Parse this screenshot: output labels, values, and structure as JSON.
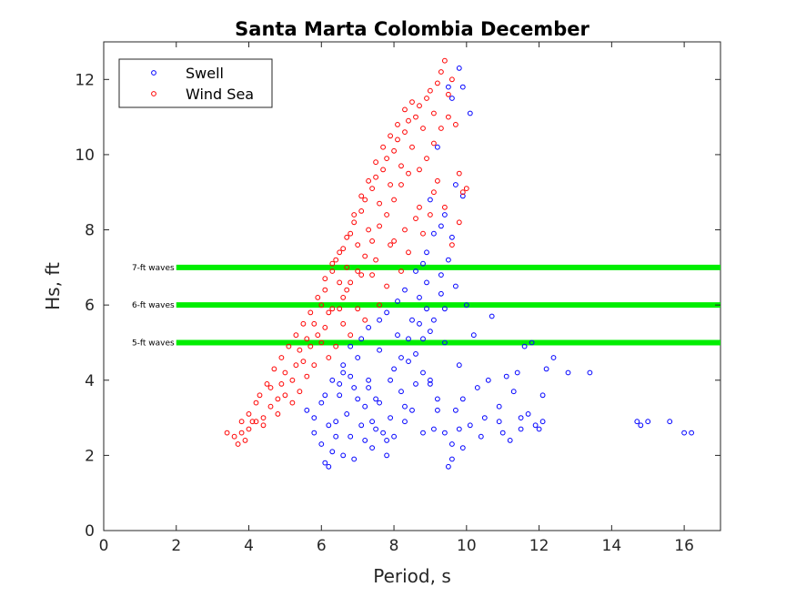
{
  "chart_data": {
    "type": "scatter",
    "title": "Santa Marta Colombia December",
    "xlabel": "Period, s",
    "ylabel": "Hs, ft",
    "xlim": [
      0,
      17
    ],
    "ylim": [
      0,
      13
    ],
    "xticks": [
      0,
      2,
      4,
      6,
      8,
      10,
      12,
      14,
      16
    ],
    "yticks": [
      0,
      2,
      4,
      6,
      8,
      10,
      12
    ],
    "grid": false,
    "legend_position": "top-left",
    "series": [
      {
        "name": "Swell",
        "color": "#0000ff",
        "marker": "circle-open",
        "points": [
          [
            5.6,
            3.2
          ],
          [
            5.8,
            2.6
          ],
          [
            6.0,
            2.3
          ],
          [
            6.1,
            1.8
          ],
          [
            6.2,
            1.7
          ],
          [
            6.3,
            2.1
          ],
          [
            6.4,
            2.9
          ],
          [
            6.5,
            3.6
          ],
          [
            6.6,
            4.2
          ],
          [
            6.7,
            3.1
          ],
          [
            6.8,
            2.5
          ],
          [
            6.9,
            3.8
          ],
          [
            7.0,
            4.6
          ],
          [
            7.1,
            2.8
          ],
          [
            7.2,
            3.3
          ],
          [
            7.3,
            4.0
          ],
          [
            7.4,
            2.2
          ],
          [
            7.5,
            3.5
          ],
          [
            7.6,
            4.8
          ],
          [
            7.7,
            2.6
          ],
          [
            7.8,
            2.0
          ],
          [
            7.9,
            3.0
          ],
          [
            8.0,
            4.3
          ],
          [
            8.1,
            5.2
          ],
          [
            8.2,
            3.7
          ],
          [
            8.3,
            2.9
          ],
          [
            8.4,
            4.5
          ],
          [
            8.5,
            5.6
          ],
          [
            8.6,
            3.9
          ],
          [
            8.7,
            6.2
          ],
          [
            8.8,
            7.1
          ],
          [
            8.9,
            5.9
          ],
          [
            9.0,
            4.0
          ],
          [
            9.1,
            2.7
          ],
          [
            9.2,
            3.5
          ],
          [
            9.3,
            6.8
          ],
          [
            9.4,
            5.0
          ],
          [
            9.5,
            1.7
          ],
          [
            9.6,
            1.9
          ],
          [
            9.7,
            3.2
          ],
          [
            9.8,
            4.4
          ],
          [
            9.9,
            2.2
          ],
          [
            10.0,
            6.0
          ],
          [
            10.2,
            5.2
          ],
          [
            10.5,
            3.0
          ],
          [
            10.7,
            5.7
          ],
          [
            10.9,
            2.9
          ],
          [
            11.0,
            2.6
          ],
          [
            11.2,
            2.4
          ],
          [
            11.4,
            4.2
          ],
          [
            11.5,
            3.0
          ],
          [
            11.7,
            3.1
          ],
          [
            11.9,
            2.8
          ],
          [
            12.0,
            2.7
          ],
          [
            12.1,
            2.9
          ],
          [
            12.2,
            4.3
          ],
          [
            12.4,
            4.6
          ],
          [
            12.8,
            4.2
          ],
          [
            13.4,
            4.2
          ],
          [
            14.7,
            2.9
          ],
          [
            14.8,
            2.8
          ],
          [
            15.0,
            2.9
          ],
          [
            15.6,
            2.9
          ],
          [
            16.0,
            2.6
          ],
          [
            16.2,
            2.6
          ],
          [
            9.6,
            11.5
          ],
          [
            9.8,
            12.3
          ],
          [
            9.7,
            9.2
          ],
          [
            9.9,
            8.9
          ],
          [
            9.5,
            11.8
          ],
          [
            9.2,
            10.2
          ],
          [
            9.4,
            8.4
          ],
          [
            9.6,
            7.8
          ],
          [
            9.0,
            8.8
          ],
          [
            9.9,
            11.8
          ],
          [
            10.1,
            11.1
          ],
          [
            9.3,
            6.3
          ],
          [
            8.9,
            6.6
          ],
          [
            8.7,
            5.5
          ],
          [
            9.0,
            5.3
          ],
          [
            6.5,
            3.9
          ],
          [
            6.8,
            4.1
          ],
          [
            7.0,
            3.5
          ],
          [
            7.3,
            3.8
          ],
          [
            7.5,
            2.7
          ],
          [
            7.8,
            2.4
          ],
          [
            8.0,
            2.5
          ],
          [
            8.3,
            3.3
          ],
          [
            8.5,
            3.2
          ],
          [
            8.8,
            2.6
          ],
          [
            6.0,
            3.4
          ],
          [
            6.2,
            2.8
          ],
          [
            6.4,
            2.5
          ],
          [
            6.6,
            2.0
          ],
          [
            6.9,
            1.9
          ],
          [
            7.2,
            2.4
          ],
          [
            7.4,
            2.9
          ],
          [
            7.6,
            3.4
          ],
          [
            7.9,
            4.0
          ],
          [
            8.2,
            4.6
          ],
          [
            8.4,
            5.1
          ],
          [
            8.6,
            4.7
          ],
          [
            8.8,
            4.2
          ],
          [
            9.0,
            3.9
          ],
          [
            9.2,
            3.2
          ],
          [
            9.4,
            2.6
          ],
          [
            9.6,
            2.3
          ],
          [
            9.8,
            2.7
          ],
          [
            10.3,
            3.8
          ],
          [
            10.6,
            4.0
          ],
          [
            11.1,
            4.1
          ],
          [
            11.3,
            3.7
          ],
          [
            11.6,
            4.9
          ],
          [
            11.8,
            5.0
          ],
          [
            11.5,
            2.7
          ],
          [
            12.1,
            3.6
          ],
          [
            10.9,
            3.3
          ],
          [
            10.4,
            2.5
          ],
          [
            10.1,
            2.8
          ],
          [
            9.9,
            3.5
          ],
          [
            5.8,
            3.0
          ],
          [
            6.1,
            3.6
          ],
          [
            6.3,
            4.0
          ],
          [
            6.6,
            4.4
          ],
          [
            6.8,
            4.9
          ],
          [
            7.1,
            5.1
          ],
          [
            7.3,
            5.4
          ],
          [
            7.6,
            5.6
          ],
          [
            7.8,
            5.8
          ],
          [
            8.1,
            6.1
          ],
          [
            8.3,
            6.4
          ],
          [
            8.6,
            6.9
          ],
          [
            8.9,
            7.4
          ],
          [
            9.1,
            7.9
          ],
          [
            9.3,
            8.1
          ],
          [
            9.5,
            7.2
          ],
          [
            9.7,
            6.5
          ],
          [
            9.4,
            5.9
          ],
          [
            9.1,
            5.6
          ],
          [
            8.8,
            5.1
          ]
        ]
      },
      {
        "name": "Wind Sea",
        "color": "#ff0000",
        "marker": "circle-open",
        "points": [
          [
            3.4,
            2.6
          ],
          [
            3.8,
            2.9
          ],
          [
            4.0,
            3.1
          ],
          [
            4.2,
            3.4
          ],
          [
            4.4,
            3.0
          ],
          [
            4.6,
            3.8
          ],
          [
            4.8,
            3.5
          ],
          [
            5.0,
            4.2
          ],
          [
            5.2,
            4.0
          ],
          [
            5.4,
            4.8
          ],
          [
            5.6,
            5.1
          ],
          [
            5.8,
            5.5
          ],
          [
            6.0,
            6.0
          ],
          [
            6.1,
            6.4
          ],
          [
            6.2,
            5.8
          ],
          [
            6.3,
            6.9
          ],
          [
            6.4,
            7.2
          ],
          [
            6.5,
            6.6
          ],
          [
            6.6,
            7.5
          ],
          [
            6.7,
            7.0
          ],
          [
            6.8,
            7.9
          ],
          [
            6.9,
            8.2
          ],
          [
            7.0,
            7.6
          ],
          [
            7.1,
            8.5
          ],
          [
            7.2,
            8.8
          ],
          [
            7.3,
            8.0
          ],
          [
            7.4,
            9.1
          ],
          [
            7.5,
            9.4
          ],
          [
            7.6,
            8.7
          ],
          [
            7.7,
            9.6
          ],
          [
            7.8,
            9.9
          ],
          [
            7.9,
            9.2
          ],
          [
            8.0,
            10.1
          ],
          [
            8.1,
            10.4
          ],
          [
            8.2,
            9.7
          ],
          [
            8.3,
            10.6
          ],
          [
            8.4,
            10.9
          ],
          [
            8.5,
            10.2
          ],
          [
            8.6,
            11.0
          ],
          [
            8.7,
            11.3
          ],
          [
            8.8,
            10.7
          ],
          [
            8.9,
            11.5
          ],
          [
            9.0,
            11.7
          ],
          [
            9.1,
            11.1
          ],
          [
            9.2,
            11.9
          ],
          [
            9.3,
            12.2
          ],
          [
            9.4,
            12.5
          ],
          [
            9.5,
            11.6
          ],
          [
            9.6,
            12.0
          ],
          [
            9.7,
            10.8
          ],
          [
            9.8,
            9.5
          ],
          [
            9.9,
            9.0
          ],
          [
            10.0,
            9.1
          ],
          [
            9.8,
            8.2
          ],
          [
            9.6,
            7.6
          ],
          [
            9.4,
            8.6
          ],
          [
            9.2,
            9.3
          ],
          [
            9.0,
            8.4
          ],
          [
            8.8,
            7.9
          ],
          [
            8.6,
            8.3
          ],
          [
            8.4,
            7.4
          ],
          [
            8.2,
            6.9
          ],
          [
            8.0,
            7.7
          ],
          [
            7.8,
            6.5
          ],
          [
            7.6,
            6.0
          ],
          [
            7.4,
            6.8
          ],
          [
            7.2,
            5.6
          ],
          [
            7.0,
            5.9
          ],
          [
            6.8,
            5.2
          ],
          [
            6.6,
            5.5
          ],
          [
            6.4,
            4.9
          ],
          [
            6.2,
            4.6
          ],
          [
            6.0,
            5.0
          ],
          [
            5.8,
            4.4
          ],
          [
            5.6,
            4.1
          ],
          [
            5.4,
            3.7
          ],
          [
            5.2,
            3.4
          ],
          [
            5.0,
            3.6
          ],
          [
            4.8,
            3.1
          ],
          [
            4.6,
            3.3
          ],
          [
            4.4,
            2.8
          ],
          [
            4.2,
            2.9
          ],
          [
            4.0,
            2.7
          ],
          [
            3.8,
            2.6
          ],
          [
            3.6,
            2.5
          ],
          [
            3.7,
            2.3
          ],
          [
            3.9,
            2.4
          ],
          [
            4.1,
            2.9
          ],
          [
            4.3,
            3.6
          ],
          [
            4.5,
            3.9
          ],
          [
            4.7,
            4.3
          ],
          [
            4.9,
            4.6
          ],
          [
            5.1,
            4.9
          ],
          [
            5.3,
            5.2
          ],
          [
            5.5,
            5.5
          ],
          [
            5.7,
            5.8
          ],
          [
            5.9,
            6.2
          ],
          [
            6.1,
            6.7
          ],
          [
            6.3,
            7.1
          ],
          [
            6.5,
            7.4
          ],
          [
            6.7,
            7.8
          ],
          [
            6.9,
            8.4
          ],
          [
            7.1,
            8.9
          ],
          [
            7.3,
            9.3
          ],
          [
            7.5,
            9.8
          ],
          [
            7.7,
            10.2
          ],
          [
            7.9,
            10.5
          ],
          [
            8.1,
            10.8
          ],
          [
            8.3,
            11.2
          ],
          [
            8.5,
            11.4
          ],
          [
            8.7,
            9.6
          ],
          [
            8.9,
            9.9
          ],
          [
            9.1,
            10.3
          ],
          [
            9.3,
            10.7
          ],
          [
            9.5,
            11.0
          ],
          [
            6.6,
            6.2
          ],
          [
            6.8,
            6.6
          ],
          [
            7.0,
            6.9
          ],
          [
            7.2,
            7.3
          ],
          [
            7.4,
            7.7
          ],
          [
            7.6,
            8.1
          ],
          [
            7.8,
            8.4
          ],
          [
            8.0,
            8.8
          ],
          [
            8.2,
            9.2
          ],
          [
            8.4,
            9.5
          ],
          [
            5.5,
            4.5
          ],
          [
            5.9,
            5.2
          ],
          [
            6.3,
            5.9
          ],
          [
            6.7,
            6.4
          ],
          [
            7.1,
            6.8
          ],
          [
            7.5,
            7.2
          ],
          [
            7.9,
            7.6
          ],
          [
            8.3,
            8.0
          ],
          [
            8.7,
            8.6
          ],
          [
            9.1,
            9.0
          ],
          [
            4.9,
            3.9
          ],
          [
            5.3,
            4.4
          ],
          [
            5.7,
            4.9
          ],
          [
            6.1,
            5.4
          ],
          [
            6.5,
            5.9
          ]
        ]
      }
    ],
    "reference_lines": [
      {
        "y": 7,
        "x_start": 2,
        "label": "7-ft waves",
        "color": "#00ee00"
      },
      {
        "y": 6,
        "x_start": 2,
        "label": "6-ft waves",
        "color": "#00ee00"
      },
      {
        "y": 5,
        "x_start": 2,
        "label": "5-ft waves",
        "color": "#00ee00"
      }
    ]
  }
}
